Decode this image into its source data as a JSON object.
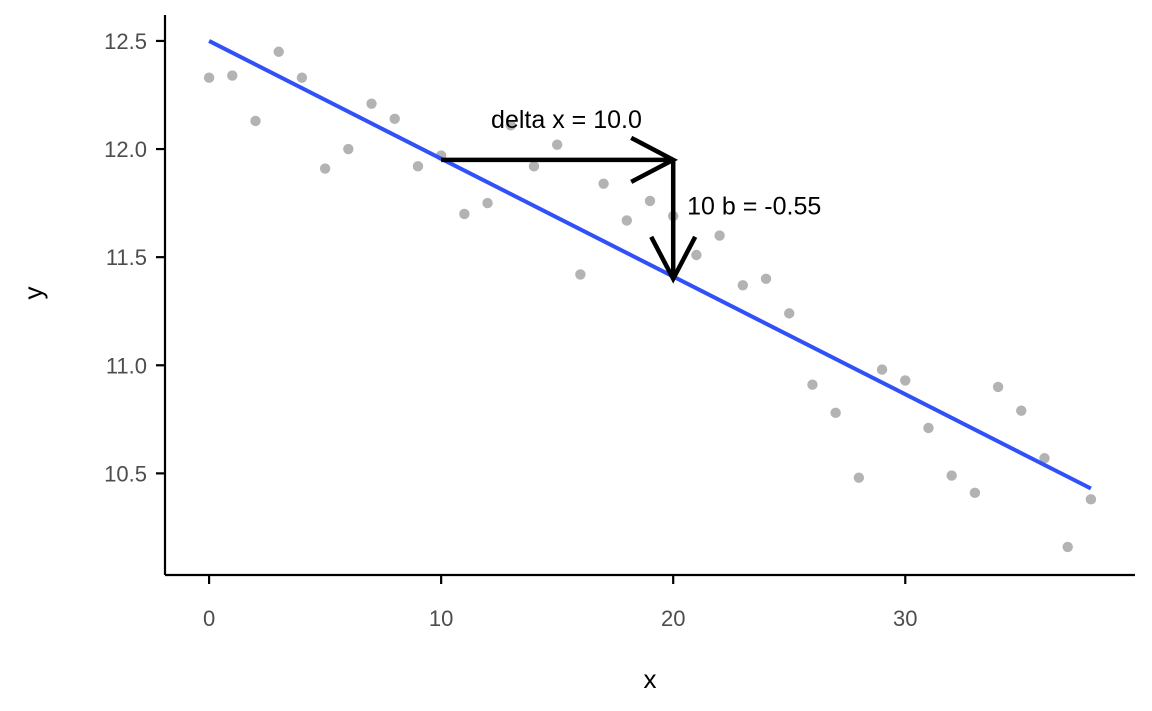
{
  "chart_data": {
    "type": "scatter",
    "title": "",
    "xlabel": "x",
    "ylabel": "y",
    "xlim": [
      -1.9,
      39.9
    ],
    "ylim": [
      10.03,
      12.62
    ],
    "x_ticks": [
      0,
      10,
      20,
      30
    ],
    "x_tick_labels": [
      "0",
      "10",
      "20",
      "30"
    ],
    "y_ticks": [
      10.5,
      11.0,
      11.5,
      12.0,
      12.5
    ],
    "y_tick_labels": [
      "10.5",
      "11.0",
      "11.5",
      "12.0",
      "12.5"
    ],
    "grid": false,
    "legend": "none",
    "points": {
      "color": "#b3b3b3",
      "x": [
        0,
        1,
        2,
        3,
        4,
        5,
        6,
        7,
        8,
        9,
        10,
        11,
        12,
        13,
        14,
        15,
        16,
        17,
        18,
        19,
        20,
        21,
        22,
        23,
        24,
        25,
        26,
        27,
        28,
        29,
        30,
        31,
        32,
        33,
        34,
        35,
        36,
        37,
        38
      ],
      "y": [
        12.33,
        12.34,
        12.13,
        12.45,
        12.33,
        11.91,
        12.0,
        12.21,
        12.14,
        11.92,
        11.97,
        11.7,
        11.75,
        12.11,
        11.92,
        12.02,
        11.42,
        11.84,
        11.67,
        11.76,
        11.69,
        11.51,
        11.6,
        11.37,
        11.4,
        11.24,
        10.91,
        10.78,
        10.48,
        10.98,
        10.93,
        10.71,
        10.49,
        10.41,
        10.9,
        10.79,
        10.57,
        10.16,
        10.38
      ]
    },
    "fit_line": {
      "color": "#3050f8",
      "x": [
        0,
        38
      ],
      "y": [
        12.5,
        10.43
      ]
    },
    "annotations": {
      "horizontal_arrow": {
        "x_start": 10,
        "x_end": 20,
        "y": 11.95
      },
      "vertical_arrow": {
        "x": 20,
        "y_start": 11.95,
        "y_end": 11.4
      },
      "delta_x_label": {
        "text": "delta x = 10.0",
        "x": 15.4,
        "y": 12.14
      },
      "delta_y_label": {
        "text": "10 b = -0.55",
        "x": 20.6,
        "y": 11.74
      }
    }
  }
}
